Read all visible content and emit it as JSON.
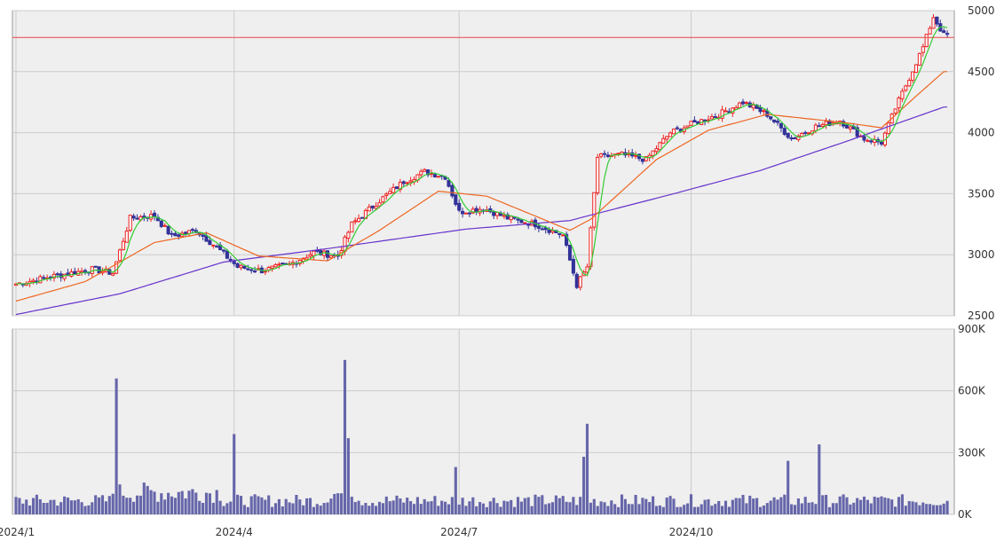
{
  "chart_data": [
    {
      "type": "candlestick",
      "title": "",
      "xlabel": "",
      "ylabel": "",
      "ylim": [
        2500,
        5000
      ],
      "yticks": [
        "2500",
        "3000",
        "3500",
        "4000",
        "4500",
        "5000"
      ],
      "xticks": [
        "2024/1",
        "2024/4",
        "2024/7",
        "2024/10"
      ],
      "grid": true,
      "reference_line": 4780,
      "ohlc_anchors": [
        {
          "x": 0,
          "close": 2760
        },
        {
          "x": 10,
          "close": 2820
        },
        {
          "x": 22,
          "close": 2880
        },
        {
          "x": 28,
          "close": 2850
        },
        {
          "x": 33,
          "close": 3300
        },
        {
          "x": 40,
          "close": 3320
        },
        {
          "x": 45,
          "close": 3150
        },
        {
          "x": 52,
          "close": 3200
        },
        {
          "x": 58,
          "close": 3060
        },
        {
          "x": 64,
          "close": 2900
        },
        {
          "x": 71,
          "close": 2870
        },
        {
          "x": 79,
          "close": 2920
        },
        {
          "x": 86,
          "close": 3020
        },
        {
          "x": 93,
          "close": 2990
        },
        {
          "x": 97,
          "close": 3250
        },
        {
          "x": 104,
          "close": 3420
        },
        {
          "x": 112,
          "close": 3600
        },
        {
          "x": 118,
          "close": 3680
        },
        {
          "x": 124,
          "close": 3640
        },
        {
          "x": 128,
          "close": 3350
        },
        {
          "x": 135,
          "close": 3380
        },
        {
          "x": 142,
          "close": 3300
        },
        {
          "x": 150,
          "close": 3250
        },
        {
          "x": 158,
          "close": 3160
        },
        {
          "x": 162,
          "close": 2750
        },
        {
          "x": 165,
          "close": 2900
        },
        {
          "x": 168,
          "close": 3800
        },
        {
          "x": 175,
          "close": 3820
        },
        {
          "x": 182,
          "close": 3780
        },
        {
          "x": 189,
          "close": 4000
        },
        {
          "x": 196,
          "close": 4080
        },
        {
          "x": 203,
          "close": 4150
        },
        {
          "x": 210,
          "close": 4250
        },
        {
          "x": 217,
          "close": 4150
        },
        {
          "x": 224,
          "close": 3950
        },
        {
          "x": 231,
          "close": 4050
        },
        {
          "x": 238,
          "close": 4100
        },
        {
          "x": 245,
          "close": 3950
        },
        {
          "x": 250,
          "close": 3920
        },
        {
          "x": 254,
          "close": 4200
        },
        {
          "x": 258,
          "close": 4450
        },
        {
          "x": 262,
          "close": 4700
        },
        {
          "x": 265,
          "close": 4950
        },
        {
          "x": 268,
          "close": 4800
        }
      ],
      "ma_short_color": "#33cc33",
      "ma_mid_color": "#ee6622",
      "ma_long_color": "#6633cc",
      "ma_mid_anchors": [
        {
          "x": 0,
          "value": 2620
        },
        {
          "x": 20,
          "value": 2780
        },
        {
          "x": 40,
          "value": 3100
        },
        {
          "x": 55,
          "value": 3180
        },
        {
          "x": 70,
          "value": 2990
        },
        {
          "x": 90,
          "value": 2950
        },
        {
          "x": 105,
          "value": 3200
        },
        {
          "x": 122,
          "value": 3520
        },
        {
          "x": 136,
          "value": 3480
        },
        {
          "x": 160,
          "value": 3200
        },
        {
          "x": 166,
          "value": 3290
        },
        {
          "x": 185,
          "value": 3780
        },
        {
          "x": 200,
          "value": 4020
        },
        {
          "x": 217,
          "value": 4150
        },
        {
          "x": 240,
          "value": 4080
        },
        {
          "x": 250,
          "value": 4040
        },
        {
          "x": 260,
          "value": 4300
        },
        {
          "x": 268,
          "value": 4500
        }
      ],
      "ma_long_anchors": [
        {
          "x": 0,
          "value": 2510
        },
        {
          "x": 30,
          "value": 2680
        },
        {
          "x": 60,
          "value": 2940
        },
        {
          "x": 90,
          "value": 3050
        },
        {
          "x": 130,
          "value": 3210
        },
        {
          "x": 160,
          "value": 3280
        },
        {
          "x": 190,
          "value": 3500
        },
        {
          "x": 215,
          "value": 3690
        },
        {
          "x": 240,
          "value": 3930
        },
        {
          "x": 268,
          "value": 4210
        }
      ],
      "up_color": "#ee2222",
      "down_color": "#333399"
    },
    {
      "type": "bar",
      "title": "",
      "ylim": [
        0,
        900000
      ],
      "yticks": [
        "0K",
        "300K",
        "600K",
        "900K"
      ],
      "bar_color": "#6666aa",
      "spikes": [
        {
          "x": 29,
          "value": 660000
        },
        {
          "x": 63,
          "value": 390000
        },
        {
          "x": 95,
          "value": 750000
        },
        {
          "x": 95.5,
          "value": 370000
        },
        {
          "x": 127,
          "value": 230000
        },
        {
          "x": 164,
          "value": 280000
        },
        {
          "x": 165,
          "value": 440000
        },
        {
          "x": 223,
          "value": 260000
        },
        {
          "x": 232,
          "value": 340000
        }
      ],
      "baseline_volume": 70000
    }
  ]
}
